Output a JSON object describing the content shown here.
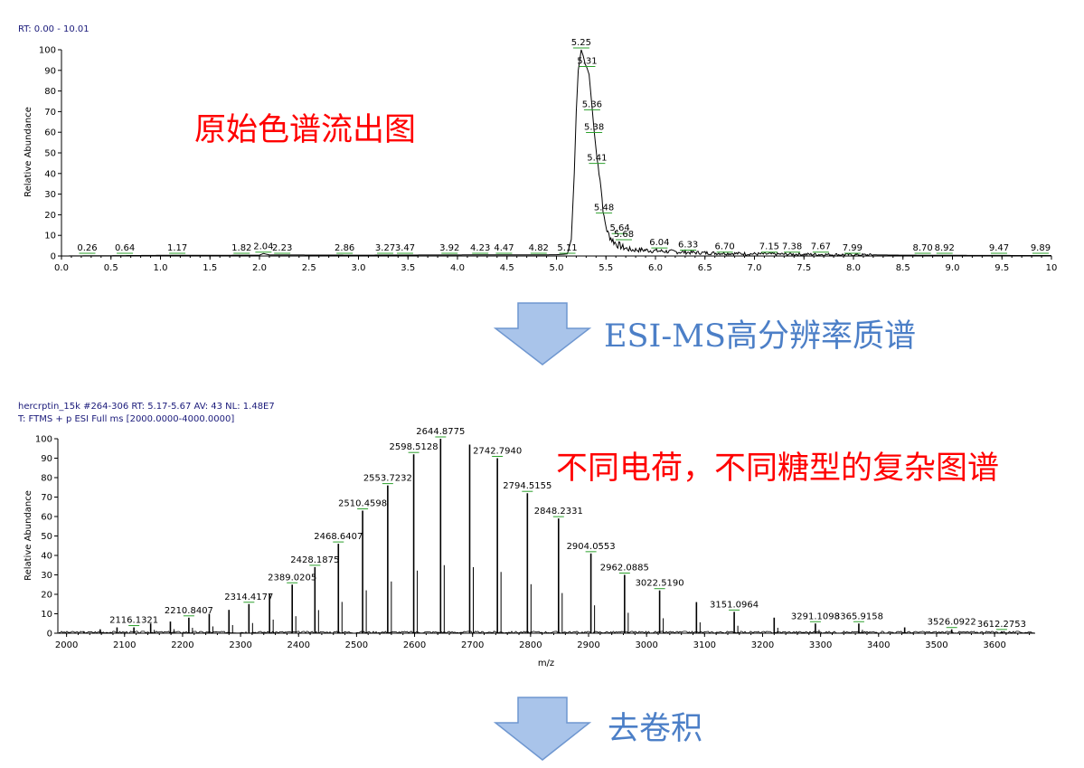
{
  "chart_data": [
    {
      "type": "line",
      "header": "RT: 0.00 - 10.01",
      "ylabel": "Relative Abundance",
      "xlim": [
        0,
        10
      ],
      "ylim": [
        0,
        100
      ],
      "x_ticks": [
        "0.0",
        "0.5",
        "1.0",
        "1.5",
        "2.0",
        "2.5",
        "3.0",
        "3.5",
        "4.0",
        "4.5",
        "5.0",
        "5.5",
        "6.0",
        "6.5",
        "7.0",
        "7.5",
        "8.0",
        "8.5",
        "9.0",
        "9.5",
        "10"
      ],
      "y_ticks": [
        "0",
        "10",
        "20",
        "30",
        "40",
        "50",
        "60",
        "70",
        "80",
        "90",
        "100"
      ],
      "x": [
        0.0,
        1.0,
        2.0,
        2.04,
        2.1,
        3.0,
        4.0,
        5.0,
        5.11,
        5.15,
        5.18,
        5.2,
        5.22,
        5.25,
        5.27,
        5.29,
        5.31,
        5.33,
        5.36,
        5.38,
        5.41,
        5.44,
        5.46,
        5.48,
        5.52,
        5.56,
        5.6,
        5.64,
        5.68,
        5.75,
        5.85,
        6.0,
        6.2,
        6.5,
        7.0,
        7.5,
        8.0,
        8.5,
        9.0,
        10.0
      ],
      "y": [
        0,
        0.3,
        0.4,
        1.2,
        0.5,
        0.4,
        0.5,
        0.6,
        1,
        8,
        40,
        70,
        90,
        100,
        97,
        93,
        91,
        88,
        72,
        61,
        47,
        38,
        28,
        18,
        11,
        8,
        6,
        5,
        4,
        3,
        3,
        2.5,
        2,
        1.5,
        1,
        0.8,
        0.6,
        0.4,
        0.3,
        0.2
      ],
      "peak_labels": [
        {
          "rt": 0.26,
          "y": 0,
          "label": "0.26"
        },
        {
          "rt": 0.64,
          "y": 0,
          "label": "0.64"
        },
        {
          "rt": 1.17,
          "y": 0,
          "label": "1.17"
        },
        {
          "rt": 1.82,
          "y": 0,
          "label": "1.82"
        },
        {
          "rt": 2.04,
          "y": 1,
          "label": "2.04"
        },
        {
          "rt": 2.23,
          "y": 0,
          "label": "2.23"
        },
        {
          "rt": 2.86,
          "y": 0,
          "label": "2.86"
        },
        {
          "rt": 3.27,
          "y": 0,
          "label": "3.27"
        },
        {
          "rt": 3.47,
          "y": 0,
          "label": "3.47"
        },
        {
          "rt": 3.92,
          "y": 0,
          "label": "3.92"
        },
        {
          "rt": 4.23,
          "y": 0,
          "label": "4.23"
        },
        {
          "rt": 4.47,
          "y": 0,
          "label": "4.47"
        },
        {
          "rt": 4.82,
          "y": 0,
          "label": "4.82"
        },
        {
          "rt": 5.11,
          "y": 0,
          "label": "5.11"
        },
        {
          "rt": 5.25,
          "y": 100,
          "label": "5.25"
        },
        {
          "rt": 5.31,
          "y": 91,
          "label": "5.31"
        },
        {
          "rt": 5.36,
          "y": 70,
          "label": "5.36"
        },
        {
          "rt": 5.38,
          "y": 59,
          "label": "5.38"
        },
        {
          "rt": 5.41,
          "y": 44,
          "label": "5.41"
        },
        {
          "rt": 5.48,
          "y": 20,
          "label": "5.48"
        },
        {
          "rt": 5.64,
          "y": 10,
          "label": "5.64"
        },
        {
          "rt": 5.68,
          "y": 7,
          "label": "5.68"
        },
        {
          "rt": 6.04,
          "y": 3,
          "label": "6.04"
        },
        {
          "rt": 6.33,
          "y": 2,
          "label": "6.33"
        },
        {
          "rt": 6.7,
          "y": 1,
          "label": "6.70"
        },
        {
          "rt": 7.15,
          "y": 1,
          "label": "7.15"
        },
        {
          "rt": 7.38,
          "y": 1,
          "label": "7.38"
        },
        {
          "rt": 7.67,
          "y": 1,
          "label": "7.67"
        },
        {
          "rt": 7.99,
          "y": 0,
          "label": "7.99"
        },
        {
          "rt": 8.7,
          "y": 0,
          "label": "8.70"
        },
        {
          "rt": 8.92,
          "y": 0,
          "label": "8.92"
        },
        {
          "rt": 9.47,
          "y": 0,
          "label": "9.47"
        },
        {
          "rt": 9.89,
          "y": 0,
          "label": "9.89"
        }
      ]
    },
    {
      "type": "bar",
      "header_line1": "hercrptin_15k #264-306  RT: 5.17-5.67  AV: 43  NL: 1.48E7",
      "header_line2": "T: FTMS + p ESI Full ms [2000.0000-4000.0000]",
      "xlabel": "m/z",
      "ylabel": "Relative Abundance",
      "xlim": [
        1985,
        3670
      ],
      "ylim": [
        0,
        100
      ],
      "x_ticks": [
        "2000",
        "2100",
        "2200",
        "2300",
        "2400",
        "2500",
        "2600",
        "2700",
        "2800",
        "2900",
        "3000",
        "3100",
        "3200",
        "3300",
        "3400",
        "3500",
        "3600"
      ],
      "y_ticks": [
        "0",
        "10",
        "20",
        "30",
        "40",
        "50",
        "60",
        "70",
        "80",
        "90",
        "100"
      ],
      "peaks": [
        {
          "mz": 2030,
          "y": 1
        },
        {
          "mz": 2058,
          "y": 2
        },
        {
          "mz": 2087,
          "y": 3
        },
        {
          "mz": 2116.1321,
          "y": 3,
          "label": "2116.1321"
        },
        {
          "mz": 2145,
          "y": 5
        },
        {
          "mz": 2179,
          "y": 6
        },
        {
          "mz": 2210.8407,
          "y": 8,
          "label": "2210.8407"
        },
        {
          "mz": 2246,
          "y": 10
        },
        {
          "mz": 2280,
          "y": 12
        },
        {
          "mz": 2314.4177,
          "y": 15,
          "label": "2314.4177"
        },
        {
          "mz": 2350,
          "y": 20
        },
        {
          "mz": 2389.0205,
          "y": 25,
          "label": "2389.0205"
        },
        {
          "mz": 2428.1875,
          "y": 34,
          "label": "2428.1875"
        },
        {
          "mz": 2468.6407,
          "y": 46,
          "label": "2468.6407"
        },
        {
          "mz": 2510.4598,
          "y": 63,
          "label": "2510.4598"
        },
        {
          "mz": 2553.7232,
          "y": 76,
          "label": "2553.7232"
        },
        {
          "mz": 2598.5128,
          "y": 92,
          "label": "2598.5128"
        },
        {
          "mz": 2644.8775,
          "y": 100,
          "label": "2644.8775"
        },
        {
          "mz": 2695,
          "y": 97
        },
        {
          "mz": 2742.794,
          "y": 90,
          "label": "2742.7940"
        },
        {
          "mz": 2794.5155,
          "y": 72,
          "label": "2794.5155"
        },
        {
          "mz": 2848.2331,
          "y": 59,
          "label": "2848.2331"
        },
        {
          "mz": 2904.0553,
          "y": 41,
          "label": "2904.0553"
        },
        {
          "mz": 2962.0885,
          "y": 30,
          "label": "2962.0885"
        },
        {
          "mz": 3022.519,
          "y": 22,
          "label": "3022.5190"
        },
        {
          "mz": 3086,
          "y": 16
        },
        {
          "mz": 3151.0964,
          "y": 11,
          "label": "3151.0964"
        },
        {
          "mz": 3220,
          "y": 8
        },
        {
          "mz": 3291.1098,
          "y": 5,
          "label": "3291.1098"
        },
        {
          "mz": 3365.9158,
          "y": 5,
          "label": "3365.9158"
        },
        {
          "mz": 3445,
          "y": 3
        },
        {
          "mz": 3526.0922,
          "y": 2,
          "label": "3526.0922"
        },
        {
          "mz": 3612.2753,
          "y": 1,
          "label": "3612.2753"
        }
      ]
    }
  ],
  "annotations": {
    "chromatogram_title": "原始色谱流出图",
    "arrow1_label": "ESI-MS高分辨率质谱",
    "spectrum_title": "不同电荷，不同糖型的复杂图谱",
    "arrow2_label": "去卷积"
  },
  "colors": {
    "annotation_red": "#ff0000",
    "annotation_blue": "#4c7fc7",
    "arrow_fill": "#a9c4ea",
    "arrow_stroke": "#6f97d0",
    "header_text": "#1a1a7a",
    "label_dash": "#2ca02c"
  }
}
